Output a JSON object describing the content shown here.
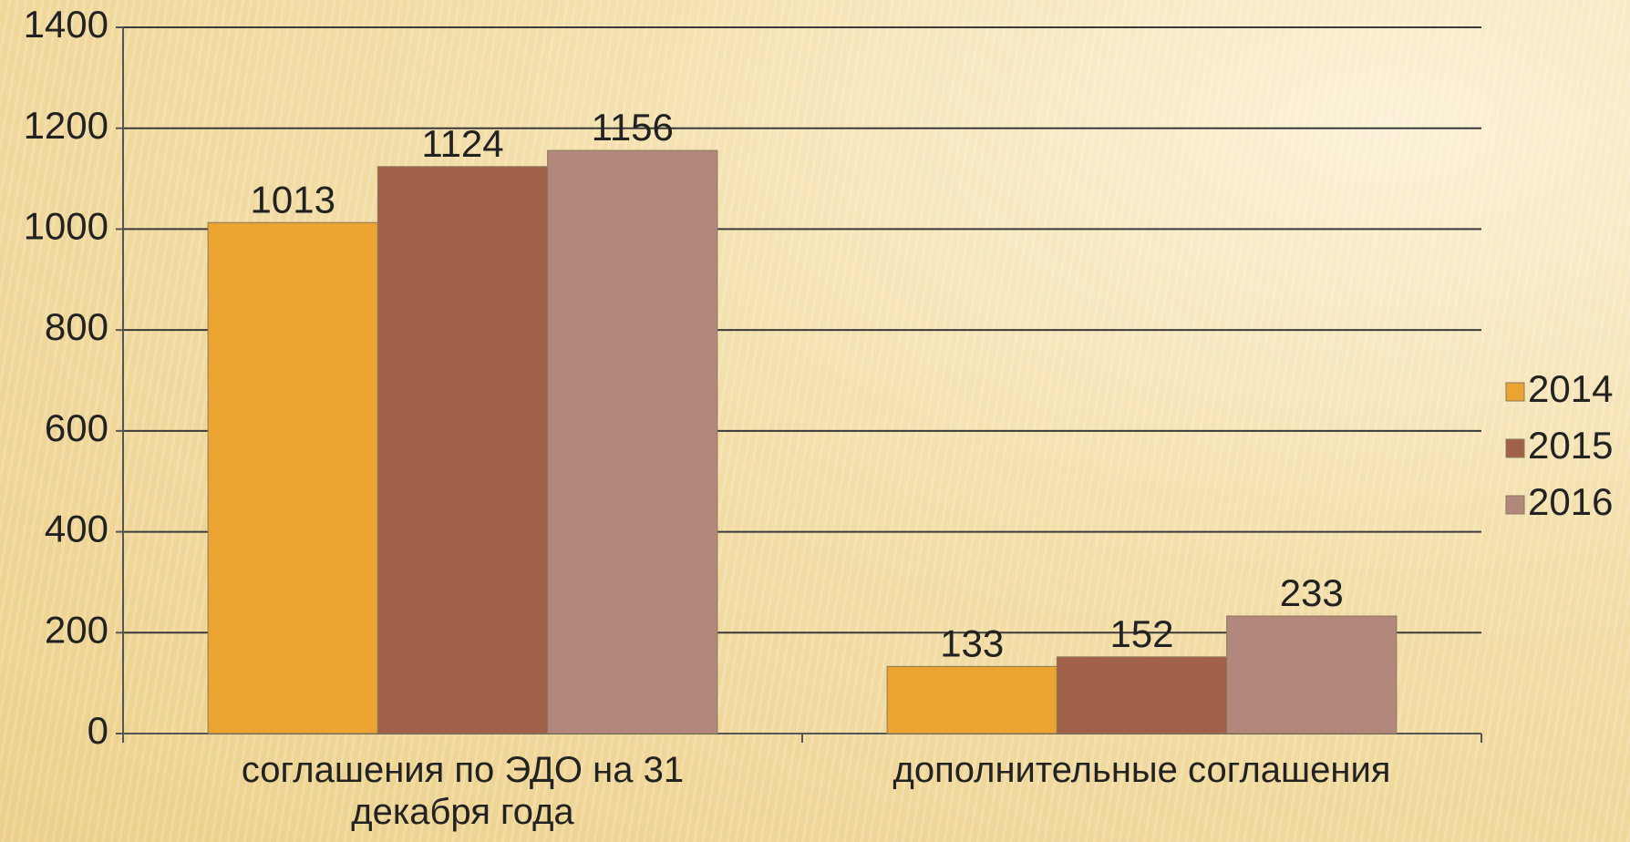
{
  "chart_data": {
    "type": "bar",
    "categories": [
      "соглашения по ЭДО на 31 декабря года",
      "дополнительные соглашения"
    ],
    "series": [
      {
        "name": "2014",
        "color": "#eba332",
        "values": [
          1013,
          133
        ]
      },
      {
        "name": "2015",
        "color": "#a0604a",
        "values": [
          1124,
          152
        ]
      },
      {
        "name": "2016",
        "color": "#b2887d",
        "values": [
          1156,
          233
        ]
      }
    ],
    "ylim": [
      0,
      1400
    ],
    "yticks": [
      0,
      200,
      400,
      600,
      800,
      1000,
      1200,
      1400
    ],
    "grid": true,
    "legend": "right",
    "data_labels": true
  }
}
